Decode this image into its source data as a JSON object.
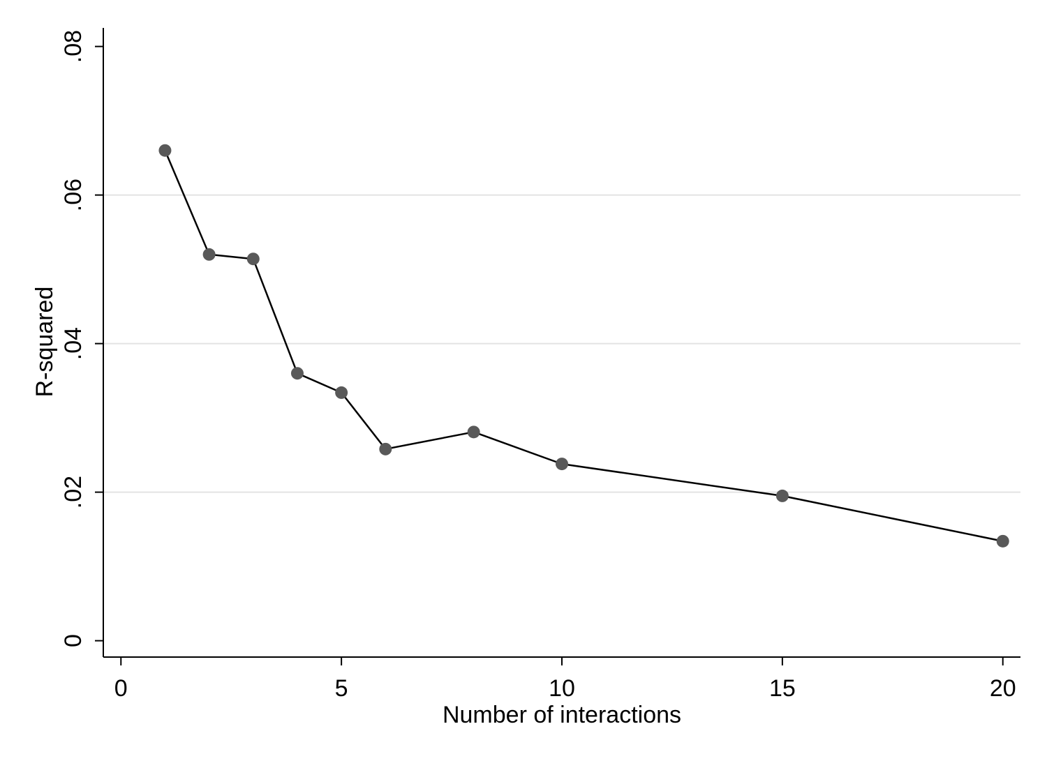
{
  "chart_data": {
    "type": "line",
    "xlabel": "Number of interactions",
    "ylabel": "R-squared",
    "xlim": [
      -0.4,
      20.4
    ],
    "ylim": [
      -0.0022,
      0.0825
    ],
    "xticks": [
      {
        "value": 0,
        "label": "0"
      },
      {
        "value": 5,
        "label": "5"
      },
      {
        "value": 10,
        "label": "10"
      },
      {
        "value": 15,
        "label": "15"
      },
      {
        "value": 20,
        "label": "20"
      }
    ],
    "yticks": [
      {
        "value": 0,
        "label": "0"
      },
      {
        "value": 0.02,
        "label": ".02"
      },
      {
        "value": 0.04,
        "label": ".04"
      },
      {
        "value": 0.06,
        "label": ".06"
      },
      {
        "value": 0.08,
        "label": ".08"
      }
    ],
    "grid": {
      "horizontal": true,
      "lines_at": [
        0.02,
        0.04,
        0.06
      ]
    },
    "series": [
      {
        "x": [
          1,
          2,
          3,
          4,
          5,
          6,
          8,
          10,
          15,
          20
        ],
        "y": [
          0.066,
          0.052,
          0.0514,
          0.036,
          0.0334,
          0.0258,
          0.0281,
          0.0238,
          0.0195,
          0.0134
        ]
      }
    ],
    "colors": {
      "line": "#000000",
      "marker": "#595959",
      "grid": "#e3e3e3",
      "axis": "#000000"
    }
  }
}
